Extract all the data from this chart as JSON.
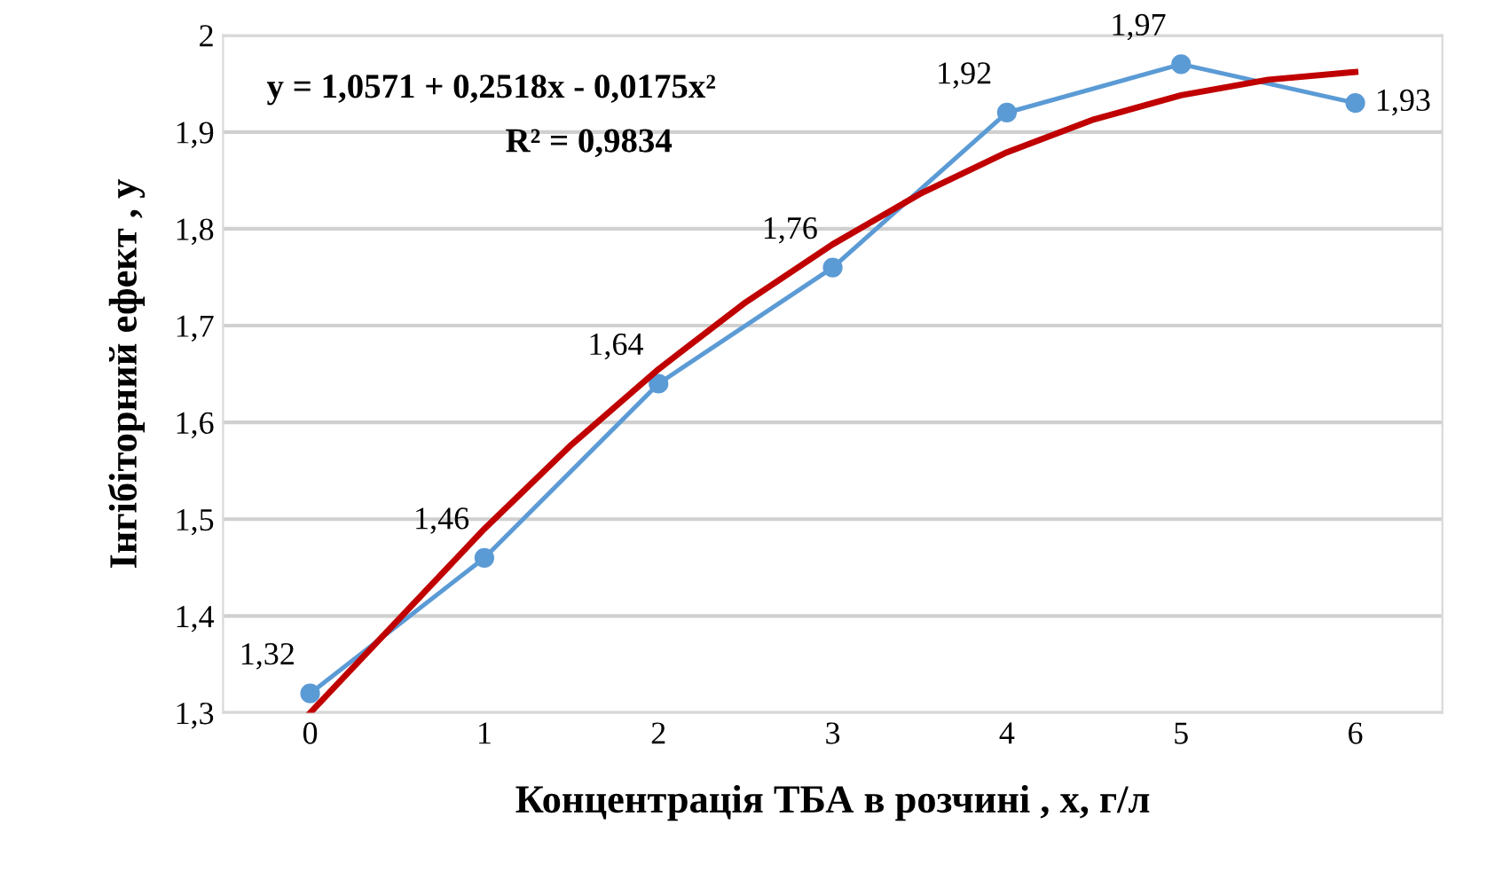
{
  "chart_data": {
    "type": "line",
    "xlabel": "Концентрація ТБА в розчині , x, г/л",
    "ylabel": "Інгібіторний ефект , y",
    "x": [
      0,
      1,
      2,
      3,
      4,
      5,
      6
    ],
    "series": [
      {
        "color": "#5b9bd5",
        "marker": "circle",
        "values": [
          1.32,
          1.46,
          1.64,
          1.76,
          1.92,
          1.97,
          1.93
        ],
        "value_labels": [
          "1,32",
          "1,46",
          "1,64",
          "1,76",
          "1,92",
          "1,97",
          "1,93"
        ]
      },
      {
        "color": "#c00000",
        "marker": "none",
        "x": [
          0,
          0.5,
          1,
          1.5,
          2,
          2.5,
          3,
          3.5,
          4,
          4.5,
          5,
          5.5,
          6
        ],
        "values": [
          1.3,
          1.395,
          1.49,
          1.577,
          1.655,
          1.724,
          1.784,
          1.836,
          1.879,
          1.913,
          1.938,
          1.954,
          1.962
        ]
      }
    ],
    "annotations": [
      "y = 1,0571 + 0,2518x - 0,0175x²",
      "R² = 0,9834"
    ],
    "xlim": [
      -0.5,
      6.5
    ],
    "xticks": [
      0,
      1,
      2,
      3,
      4,
      5,
      6
    ],
    "ylim": [
      1.3,
      2.0
    ],
    "yticks": [
      {
        "value": 1.3,
        "label": "1,3"
      },
      {
        "value": 1.4,
        "label": "1,4"
      },
      {
        "value": 1.5,
        "label": "1,5"
      },
      {
        "value": 1.6,
        "label": "1,6"
      },
      {
        "value": 1.7,
        "label": "1,7"
      },
      {
        "value": 1.8,
        "label": "1,8"
      },
      {
        "value": 1.9,
        "label": "1,9"
      },
      {
        "value": 2.0,
        "label": "2"
      }
    ],
    "grid": "y",
    "legend": false,
    "line_style": "solid"
  }
}
